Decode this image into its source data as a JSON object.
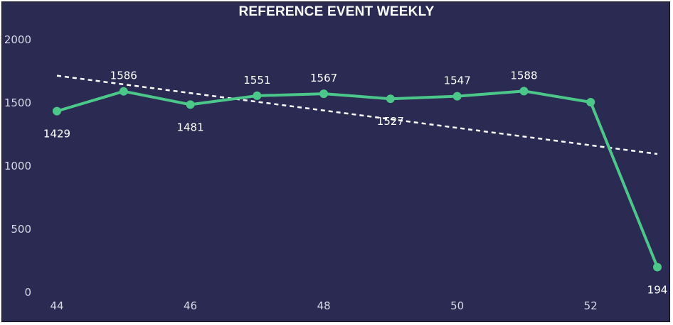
{
  "chart_data": {
    "type": "line",
    "title": "REFERENCE EVENT WEEKLY",
    "xlabel": "",
    "ylabel": "",
    "x": [
      44,
      45,
      46,
      47,
      48,
      49,
      50,
      51,
      52,
      53
    ],
    "series": [
      {
        "values": [
          1429,
          1586,
          1481,
          1551,
          1567,
          1527,
          1547,
          1588,
          1500,
          194
        ]
      }
    ],
    "data_labels": [
      "1429",
      "1586",
      "1481",
      "1551",
      "1567",
      "1527",
      "1547",
      "1588",
      "",
      "194"
    ],
    "trendline": {
      "style": "dashed",
      "start": 1710,
      "end": 1090
    },
    "x_ticks": [
      "44",
      "46",
      "48",
      "50",
      "52"
    ],
    "y_ticks": [
      "0",
      "500",
      "1000",
      "1500",
      "2000"
    ],
    "ylim": [
      0,
      2000
    ],
    "xlim": [
      44,
      53
    ],
    "grid": false,
    "colors": {
      "background": "#2a2a52",
      "line": "#4cc78a",
      "trend": "#ffffff",
      "text": "#ffffff"
    }
  }
}
